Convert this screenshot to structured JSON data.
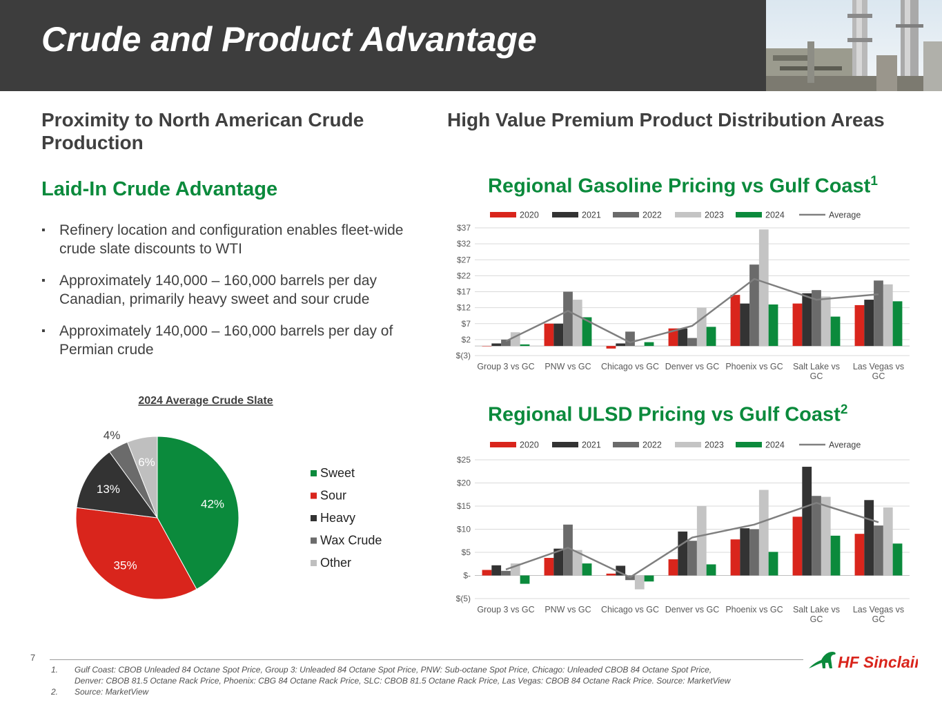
{
  "title": "Crude and Product Advantage",
  "left": {
    "heading": "Proximity to North American Crude Production",
    "subheading": "Laid-In Crude Advantage",
    "bullets": [
      "Refinery location and configuration enables fleet-wide crude slate discounts to WTI",
      "Approximately 140,000 – 160,000 barrels per day Canadian, primarily heavy sweet and sour crude",
      "Approximately 140,000 – 160,000 barrels per day of Permian crude"
    ]
  },
  "right": {
    "heading": "High Value Premium Product Distribution Areas",
    "gas_title": "Regional Gasoline Pricing vs Gulf Coast",
    "gas_sup": "1",
    "ulsd_title": "Regional ULSD Pricing vs Gulf Coast",
    "ulsd_sup": "2"
  },
  "colors": {
    "2020": "#d9251c",
    "2021": "#333333",
    "2022": "#6b6b6b",
    "2023": "#c4c4c4",
    "2024": "#0b8a3c",
    "average": "#7f7f7f",
    "sweet": "#0b8a3c",
    "sour": "#d9251c",
    "heavy": "#333333",
    "wax": "#6b6b6b",
    "other": "#bfbfbf"
  },
  "chart_data": [
    {
      "id": "gasoline",
      "type": "bar",
      "title": "Regional Gasoline Pricing vs Gulf Coast",
      "categories": [
        "Group 3 vs GC",
        "PNW vs GC",
        "Chicago vs GC",
        "Denver vs GC",
        "Phoenix vs GC",
        "Salt Lake vs GC",
        "Las Vegas vs GC"
      ],
      "category_lines": [
        [
          "Group 3 vs GC"
        ],
        [
          "PNW vs GC"
        ],
        [
          "Chicago vs GC"
        ],
        [
          "Denver vs GC"
        ],
        [
          "Phoenix vs GC"
        ],
        [
          "Salt Lake vs",
          "GC"
        ],
        [
          "Las Vegas vs",
          "GC"
        ]
      ],
      "series": [
        {
          "name": "2020",
          "values": [
            0,
            7.0,
            -0.8,
            5.5,
            16.0,
            13.3,
            12.8
          ]
        },
        {
          "name": "2021",
          "values": [
            0.8,
            7.0,
            0.8,
            5.5,
            13.3,
            16.5,
            14.5
          ]
        },
        {
          "name": "2022",
          "values": [
            2.0,
            17.0,
            4.5,
            2.5,
            25.5,
            17.5,
            20.5
          ]
        },
        {
          "name": "2023",
          "values": [
            4.3,
            14.5,
            -0.2,
            12.0,
            36.5,
            15.5,
            19.3
          ]
        },
        {
          "name": "2024",
          "values": [
            0.5,
            9.0,
            1.2,
            6.0,
            13.0,
            9.2,
            14.0
          ]
        }
      ],
      "average": {
        "name": "Average",
        "values": [
          1.5,
          11.0,
          1.1,
          6.3,
          21.0,
          14.5,
          16.2
        ]
      },
      "ylim": [
        -3,
        37
      ],
      "yticks": [
        -3,
        2,
        7,
        12,
        17,
        22,
        27,
        32,
        37
      ],
      "ytick_labels": [
        "$(3)",
        "$2",
        "$7",
        "$12",
        "$17",
        "$22",
        "$27",
        "$32",
        "$37"
      ],
      "legend": [
        "2020",
        "2021",
        "2022",
        "2023",
        "2024",
        "Average"
      ],
      "grid": true
    },
    {
      "id": "ulsd",
      "type": "bar",
      "title": "Regional ULSD Pricing vs Gulf Coast",
      "categories": [
        "Group 3 vs GC",
        "PNW vs GC",
        "Chicago vs GC",
        "Denver vs GC",
        "Phoenix vs GC",
        "Salt Lake vs GC",
        "Las Vegas vs GC"
      ],
      "category_lines": [
        [
          "Group 3 vs GC"
        ],
        [
          "PNW vs GC"
        ],
        [
          "Chicago vs GC"
        ],
        [
          "Denver vs GC"
        ],
        [
          "Phoenix vs GC"
        ],
        [
          "Salt Lake vs",
          "GC"
        ],
        [
          "Las Vegas vs",
          "GC"
        ]
      ],
      "series": [
        {
          "name": "2020",
          "values": [
            1.2,
            3.8,
            0.4,
            3.5,
            7.8,
            12.7,
            9.0
          ]
        },
        {
          "name": "2021",
          "values": [
            2.2,
            5.8,
            2.1,
            9.5,
            10.2,
            23.5,
            16.3
          ]
        },
        {
          "name": "2022",
          "values": [
            1.0,
            11.0,
            -1.0,
            7.5,
            10.0,
            17.2,
            10.8
          ]
        },
        {
          "name": "2023",
          "values": [
            2.6,
            5.5,
            -3.0,
            15.0,
            18.5,
            17.0,
            14.7
          ]
        },
        {
          "name": "2024",
          "values": [
            -1.8,
            2.6,
            -1.3,
            2.4,
            5.1,
            8.6,
            6.9
          ]
        }
      ],
      "average": {
        "name": "Average",
        "values": [
          1.3,
          6.0,
          -0.4,
          8.2,
          11.0,
          15.7,
          11.5
        ]
      },
      "ylim": [
        -5,
        25
      ],
      "yticks": [
        -5,
        0,
        5,
        10,
        15,
        20,
        25
      ],
      "ytick_labels": [
        "$(5)",
        "$-",
        "$5",
        "$10",
        "$15",
        "$20",
        "$25"
      ],
      "legend": [
        "2020",
        "2021",
        "2022",
        "2023",
        "2024",
        "Average"
      ],
      "grid": true
    },
    {
      "id": "crude_slate",
      "type": "pie",
      "title": "2024 Average Crude Slate",
      "labels": [
        "Sweet",
        "Sour",
        "Heavy",
        "Wax Crude",
        "Other"
      ],
      "values": [
        42,
        35,
        13,
        4,
        6
      ],
      "value_labels": [
        "42%",
        "35%",
        "13%",
        "4%",
        "6%"
      ],
      "legend": "right"
    }
  ],
  "footer": {
    "page_number": "7",
    "footnotes": [
      {
        "num": "1.",
        "lines": [
          "Gulf Coast:  CBOB Unleaded 84 Octane Spot Price, Group 3:  Unleaded 84 Octane Spot Price, PNW: Sub-octane Spot Price, Chicago: Unleaded CBOB 84 Octane Spot Price,",
          "Denver:  CBOB 81.5 Octane Rack Price, Phoenix: CBG 84 Octane Rack Price, SLC:  CBOB 81.5 Octane Rack Price, Las Vegas: CBOB  84 Octane Rack Price. Source: MarketView"
        ]
      },
      {
        "num": "2.",
        "lines": [
          "Source: MarketView"
        ]
      }
    ],
    "logo_text": "HF Sinclair"
  }
}
